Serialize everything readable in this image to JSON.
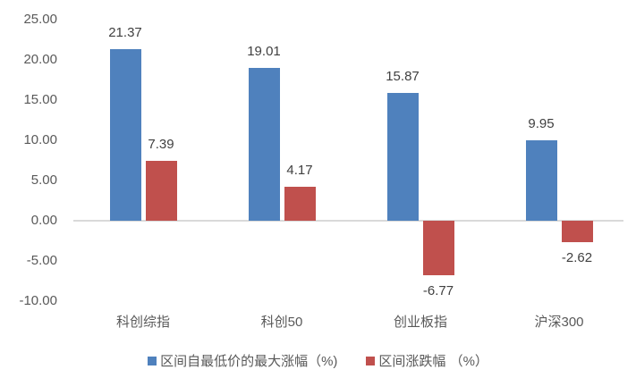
{
  "chart_data": {
    "type": "bar",
    "title": "",
    "xlabel": "",
    "ylabel": "",
    "categories": [
      "科创综指",
      "科创50",
      "创业板指",
      "沪深300"
    ],
    "series": [
      {
        "name": "区间自最低价的最大涨幅（%)",
        "color": "#4f81bd",
        "values": [
          21.37,
          19.01,
          15.87,
          9.95
        ]
      },
      {
        "name": "区间涨跌幅 （%）",
        "color": "#c0504d",
        "values": [
          7.39,
          4.17,
          -6.77,
          -2.62
        ]
      }
    ],
    "ylim": [
      -10,
      25
    ],
    "yticks": [
      "25.00",
      "20.00",
      "15.00",
      "10.00",
      "5.00",
      "0.00",
      "-5.00",
      "-10.00"
    ],
    "grid": false,
    "legend_position": "bottom",
    "data_labels": true
  },
  "labels": {
    "data": [
      [
        "21.37",
        "7.39"
      ],
      [
        "19.01",
        "4.17"
      ],
      [
        "15.87",
        "-6.77"
      ],
      [
        "9.95",
        "-2.62"
      ]
    ]
  },
  "legend": {
    "items": [
      {
        "label": "区间自最低价的最大涨幅（%)",
        "color": "#4f81bd"
      },
      {
        "label": "区间涨跌幅 （%）",
        "color": "#c0504d"
      }
    ]
  }
}
